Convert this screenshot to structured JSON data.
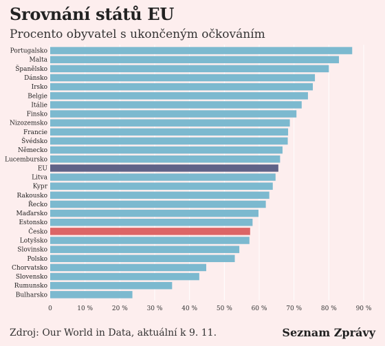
{
  "header": {
    "title": "Srovnání států EU",
    "subtitle": "Procento obyvatel s ukončeným očkováním"
  },
  "footer": {
    "source": "Zdroj: Our World in Data, aktuální k 9. 11.",
    "brand": "Seznam Zprávy"
  },
  "colors": {
    "background": "#fdeeee",
    "bar": "#7cb9cf",
    "eu": "#5f6287",
    "czech": "#dc6566",
    "grid": "#ffffff"
  },
  "chart_data": {
    "type": "bar",
    "orientation": "horizontal",
    "xlim": [
      0,
      90
    ],
    "xticks": [
      "0",
      "10 %",
      "20 %",
      "30 %",
      "40 %",
      "50 %",
      "60 %",
      "70 %",
      "80 %",
      "90 %"
    ],
    "grid": true,
    "categories": [
      "Portugalsko",
      "Malta",
      "Španělsko",
      "Dánsko",
      "Irsko",
      "Belgie",
      "Itálie",
      "Finsko",
      "Nizozemsko",
      "Francie",
      "Švédsko",
      "Německo",
      "Lucembursko",
      "EU",
      "Litva",
      "Kypr",
      "Rakousko",
      "Řecko",
      "Maďarsko",
      "Estonsko",
      "Česko",
      "Lotyšsko",
      "Slovinsko",
      "Polsko",
      "Chorvatsko",
      "Slovensko",
      "Rumunsko",
      "Bulharsko"
    ],
    "values": [
      86.7,
      82.9,
      80.0,
      76.0,
      75.4,
      74.0,
      72.2,
      70.7,
      68.8,
      68.3,
      68.2,
      66.7,
      66.0,
      65.5,
      64.7,
      63.9,
      62.9,
      61.9,
      59.8,
      58.1,
      57.4,
      57.2,
      54.3,
      53.0,
      44.8,
      42.8,
      35.0,
      23.6
    ],
    "highlight": {
      "EU": "eu",
      "Česko": "czech"
    }
  }
}
